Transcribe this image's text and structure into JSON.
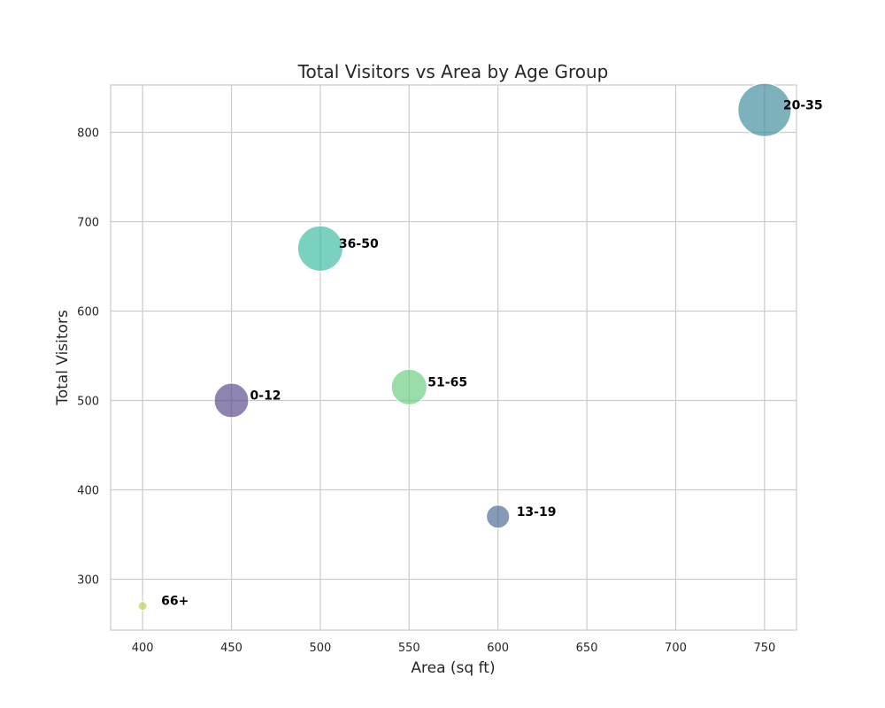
{
  "chart_data": {
    "type": "scatter",
    "title": "Total Visitors vs Area by Age Group",
    "xlabel": "Area (sq ft)",
    "ylabel": "Total Visitors",
    "xlim": [
      382,
      768
    ],
    "ylim": [
      243,
      853
    ],
    "xticks": [
      400,
      450,
      500,
      550,
      600,
      650,
      700,
      750
    ],
    "yticks": [
      300,
      400,
      500,
      600,
      700,
      800
    ],
    "grid": true,
    "bubble_size_encodes": "Total Visitors",
    "points": [
      {
        "label": "0-12",
        "x": 450,
        "y": 500,
        "color": "#5a4a8c"
      },
      {
        "label": "13-19",
        "x": 600,
        "y": 370,
        "color": "#4c6a96"
      },
      {
        "label": "20-35",
        "x": 750,
        "y": 825,
        "color": "#3f8c9c"
      },
      {
        "label": "36-50",
        "x": 500,
        "y": 670,
        "color": "#3dbba0"
      },
      {
        "label": "51-65",
        "x": 550,
        "y": 515,
        "color": "#6ccd82"
      },
      {
        "label": "66+",
        "x": 400,
        "y": 270,
        "color": "#b5d94e"
      }
    ]
  }
}
